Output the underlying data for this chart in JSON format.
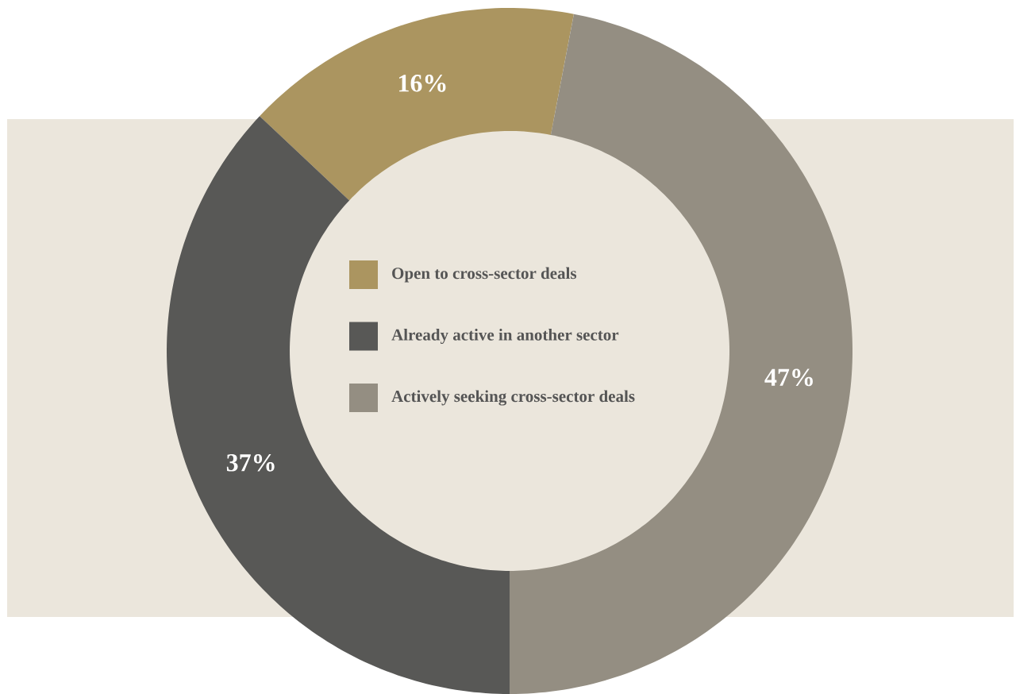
{
  "chart_data": {
    "type": "donut",
    "categories": [
      "Open to cross-sector deals",
      "Already active in another sector",
      "Actively seeking cross-sector deals"
    ],
    "values": [
      16,
      37,
      47
    ],
    "colors": [
      "#ab9560",
      "#585856",
      "#948e82"
    ],
    "value_labels": [
      "16%",
      "37%",
      "47%"
    ],
    "legend": "center"
  }
}
